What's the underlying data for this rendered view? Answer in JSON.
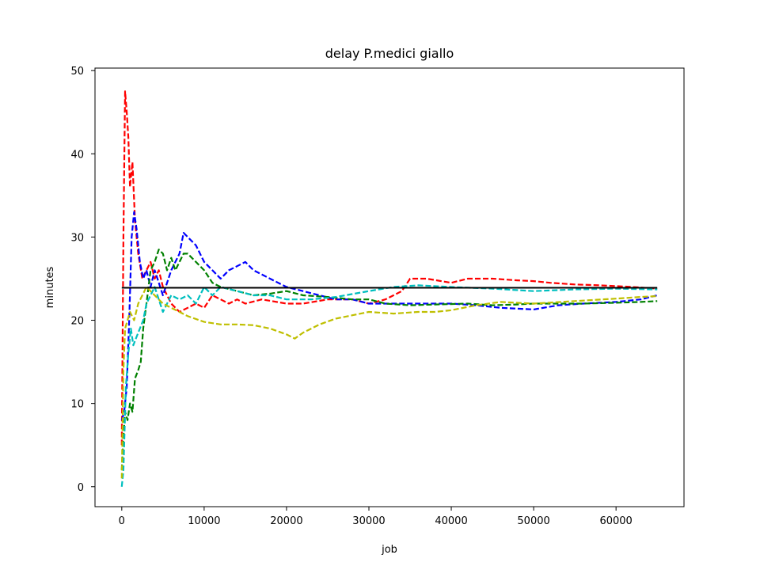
{
  "chart_data": {
    "type": "line",
    "title": "delay P.medici giallo",
    "xlabel": "job",
    "ylabel": "minutes",
    "xlim": [
      -3250,
      68250
    ],
    "ylim": [
      -2.4,
      50.3
    ],
    "xticks": [
      0,
      10000,
      20000,
      30000,
      40000,
      50000,
      60000
    ],
    "xtick_labels": [
      "0",
      "10000",
      "20000",
      "30000",
      "40000",
      "50000",
      "60000"
    ],
    "yticks": [
      0,
      10,
      20,
      30,
      40,
      50
    ],
    "ytick_labels": [
      "0",
      "10",
      "20",
      "30",
      "40",
      "50"
    ],
    "grid": false,
    "legend": "none",
    "reference_line": {
      "y": 23.9,
      "x_range": [
        0,
        65000
      ],
      "color": "#000000"
    },
    "series": [
      {
        "color": "#ff0000",
        "style": "dashed",
        "x": [
          0,
          200,
          400,
          600,
          800,
          1000,
          1300,
          1600,
          2000,
          2500,
          3000,
          3500,
          4000,
          4500,
          5000,
          6000,
          7000,
          8000,
          9000,
          10000,
          11000,
          12000,
          13000,
          14000,
          15000,
          17000,
          20000,
          22000,
          25000,
          28000,
          30000,
          32000,
          34000,
          35000,
          37000,
          40000,
          42000,
          45000,
          48000,
          50000,
          52000,
          55000,
          58000,
          60000,
          62000,
          65000
        ],
        "y": [
          5,
          30,
          47.5,
          45,
          42,
          36,
          39,
          32,
          28,
          25,
          26,
          27,
          25,
          26,
          24,
          22,
          21,
          21.5,
          22,
          21.5,
          23,
          22.5,
          22,
          22.5,
          22,
          22.5,
          22,
          22,
          22.5,
          22.5,
          22,
          22.5,
          23.5,
          25,
          25,
          24.5,
          25,
          25,
          24.8,
          24.7,
          24.5,
          24.3,
          24.2,
          24.1,
          24,
          23.8
        ]
      },
      {
        "color": "#0000ff",
        "style": "dashed",
        "x": [
          0,
          300,
          600,
          900,
          1200,
          1500,
          1800,
          2200,
          2600,
          3000,
          3500,
          4000,
          5000,
          6000,
          7000,
          7500,
          8000,
          9000,
          10000,
          11000,
          12000,
          13000,
          14000,
          15000,
          16000,
          18000,
          20000,
          22000,
          24000,
          26000,
          28000,
          30000,
          33000,
          36000,
          40000,
          43000,
          46000,
          50000,
          53000,
          56000,
          60000,
          63000,
          65000
        ],
        "y": [
          8,
          9,
          12,
          20,
          30,
          33,
          31,
          27,
          25,
          26,
          24,
          26,
          23,
          26,
          28,
          30.5,
          30,
          29,
          27,
          26,
          25,
          26,
          26.5,
          27,
          26,
          25,
          24,
          23.5,
          23,
          22.5,
          22.5,
          22,
          22,
          22,
          22,
          21.8,
          21.5,
          21.3,
          21.8,
          22,
          22.2,
          22.5,
          23
        ]
      },
      {
        "color": "#008000",
        "style": "dashed",
        "x": [
          0,
          200,
          400,
          700,
          1000,
          1300,
          1600,
          2000,
          2300,
          2600,
          3000,
          3500,
          4000,
          4500,
          5000,
          5500,
          6000,
          6500,
          7000,
          7500,
          8000,
          9000,
          10000,
          11000,
          12000,
          14000,
          16000,
          18000,
          20000,
          22000,
          25000,
          28000,
          30000,
          32000,
          35000,
          38000,
          42000,
          45000,
          48000,
          50000,
          53000,
          56000,
          60000,
          63000,
          65000
        ],
        "y": [
          2,
          6,
          9,
          8,
          10,
          9,
          13,
          14,
          15,
          19,
          22,
          26,
          27,
          28.5,
          28,
          26,
          27.5,
          26,
          27,
          28,
          28,
          27,
          26,
          24.5,
          24,
          23.5,
          23,
          23.2,
          23.5,
          23,
          22.8,
          22.5,
          22.5,
          22,
          21.8,
          21.9,
          22,
          21.8,
          21.9,
          22,
          22,
          22,
          22.1,
          22.2,
          22.3
        ]
      },
      {
        "color": "#00bfbf",
        "style": "dashed",
        "x": [
          0,
          200,
          500,
          800,
          1100,
          1400,
          1800,
          2200,
          2600,
          3000,
          3500,
          4000,
          5000,
          6000,
          7000,
          8000,
          9000,
          10000,
          11000,
          12000,
          14000,
          16000,
          18000,
          20000,
          23000,
          26000,
          30000,
          33000,
          36000,
          40000,
          45000,
          50000,
          55000,
          60000,
          65000
        ],
        "y": [
          0,
          2,
          12,
          16,
          19,
          17,
          18,
          19,
          20,
          22,
          23,
          24,
          21,
          23,
          22.5,
          23,
          22,
          24,
          23,
          24,
          23.5,
          23,
          23,
          22.5,
          22.5,
          22.8,
          23.5,
          24,
          24.2,
          24,
          23.8,
          23.5,
          23.7,
          23.8,
          23.7
        ]
      },
      {
        "color": "#bfbf00",
        "style": "dashed",
        "x": [
          0,
          200,
          400,
          700,
          1000,
          1500,
          2000,
          2500,
          3000,
          4000,
          5000,
          6000,
          7000,
          8000,
          10000,
          12000,
          14000,
          16000,
          18000,
          20000,
          21000,
          22000,
          24000,
          26000,
          28000,
          30000,
          33000,
          36000,
          38000,
          40000,
          43000,
          46000,
          50000,
          55000,
          60000,
          63000,
          65000
        ],
        "y": [
          1,
          14,
          19,
          20,
          21,
          20,
          22,
          23,
          24,
          23,
          22,
          21.5,
          21,
          20.5,
          19.8,
          19.5,
          19.5,
          19.4,
          19,
          18.3,
          17.8,
          18.5,
          19.5,
          20.2,
          20.6,
          21,
          20.8,
          21,
          21,
          21.2,
          21.8,
          22.2,
          22,
          22.3,
          22.6,
          22.8,
          22.9
        ]
      }
    ]
  }
}
